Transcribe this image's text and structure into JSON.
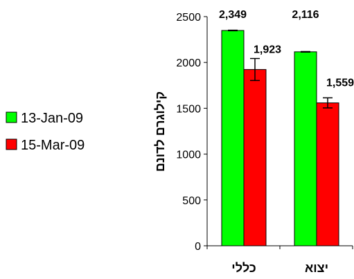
{
  "chart_data": {
    "type": "bar",
    "categories": [
      "כללי",
      "יצוא"
    ],
    "series": [
      {
        "name": "13-Jan-09",
        "color": "#00ff00",
        "values": [
          2349,
          2116
        ],
        "labels": [
          "2,349",
          "2,116"
        ],
        "error": [
          3,
          3
        ]
      },
      {
        "name": "15-Mar-09",
        "color": "#ff0000",
        "values": [
          1923,
          1559
        ],
        "labels": [
          "1,923",
          "1,559"
        ],
        "error": [
          120,
          55
        ]
      }
    ],
    "ylabel": "קילוגרם לדונם",
    "ylim": [
      0,
      2500
    ],
    "yticks": [
      0,
      500,
      1000,
      1500,
      2000,
      2500
    ],
    "grid": false,
    "legend": "left"
  }
}
